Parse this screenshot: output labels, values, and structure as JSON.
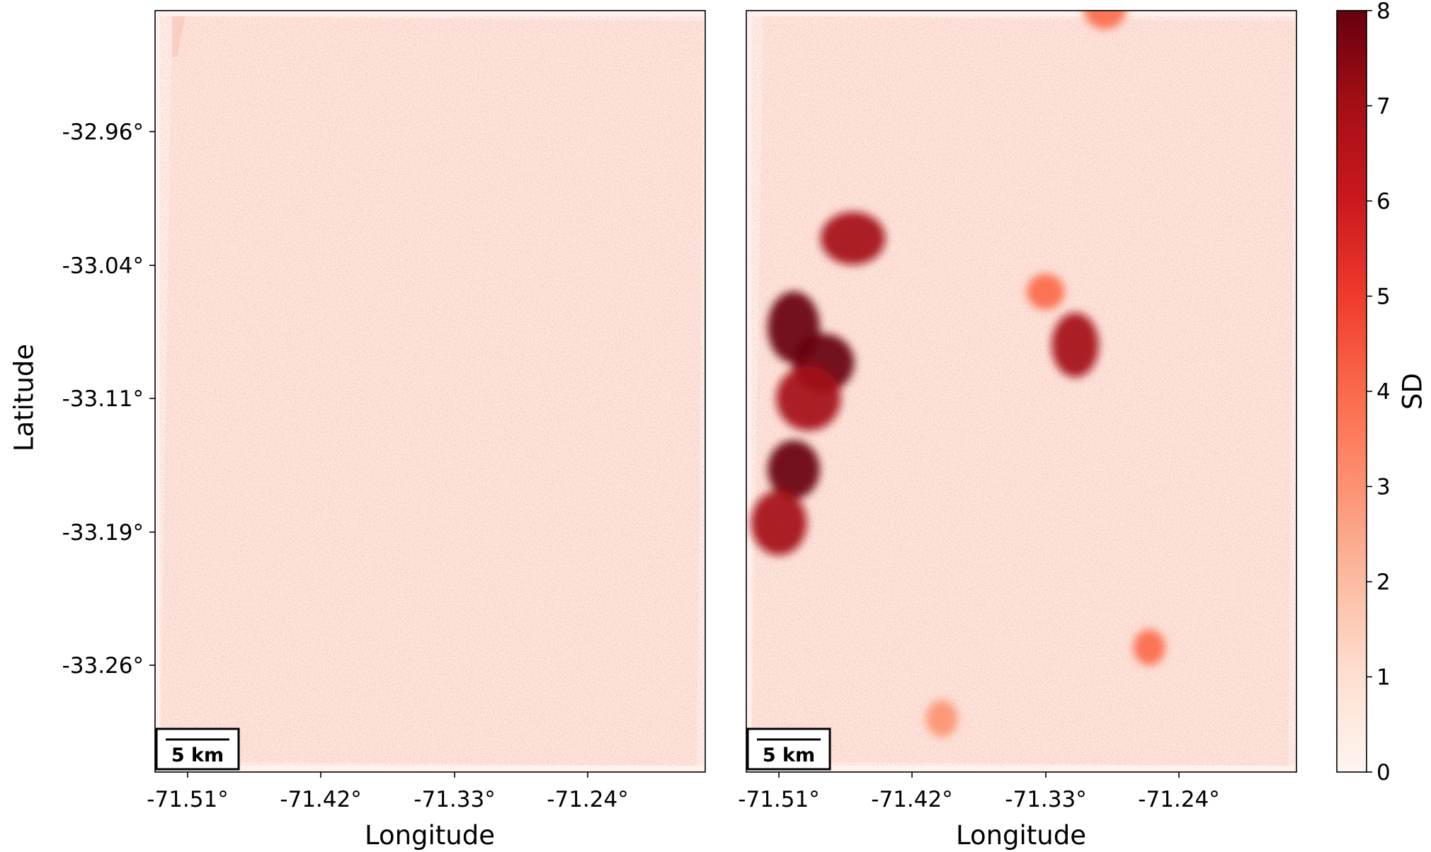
{
  "chart_data": [
    {
      "type": "heatmap",
      "panel": "left",
      "xlabel": "Longitude",
      "ylabel": "Latitude",
      "x_ticks": [
        "-71.51°",
        "-71.42°",
        "-71.33°",
        "-71.24°"
      ],
      "y_ticks": [
        "-32.96°",
        "-33.04°",
        "-33.11°",
        "-33.19°",
        "-33.26°"
      ],
      "scale_bar": "5 km",
      "hotspots": []
    },
    {
      "type": "heatmap",
      "panel": "right",
      "xlabel": "Longitude",
      "ylabel": "",
      "x_ticks": [
        "-71.51°",
        "-71.42°",
        "-71.33°",
        "-71.24°"
      ],
      "y_ticks": [],
      "scale_bar": "5 km",
      "hotspots": [
        {
          "lon": -71.5,
          "lat": -33.07,
          "sd": 8
        },
        {
          "lon": -71.48,
          "lat": -33.09,
          "sd": 8
        },
        {
          "lon": -71.49,
          "lat": -33.11,
          "sd": 7
        },
        {
          "lon": -71.5,
          "lat": -33.15,
          "sd": 8
        },
        {
          "lon": -71.51,
          "lat": -33.18,
          "sd": 7
        },
        {
          "lon": -71.46,
          "lat": -33.02,
          "sd": 7
        },
        {
          "lon": -71.31,
          "lat": -33.08,
          "sd": 7
        },
        {
          "lon": -71.33,
          "lat": -33.05,
          "sd": 4
        },
        {
          "lon": -71.29,
          "lat": -32.89,
          "sd": 4
        },
        {
          "lon": -71.26,
          "lat": -33.25,
          "sd": 4
        },
        {
          "lon": -71.4,
          "lat": -33.29,
          "sd": 3
        }
      ]
    }
  ],
  "colorbar": {
    "label": "SD",
    "min": 0,
    "max": 8,
    "ticks": [
      "0",
      "1",
      "2",
      "3",
      "4",
      "5",
      "6",
      "7",
      "8"
    ],
    "colors": [
      "#fff5f0",
      "#fee0d2",
      "#fcbba1",
      "#fc9272",
      "#fb6a4a",
      "#ef3b2c",
      "#cb181d",
      "#a50f15",
      "#67000d"
    ]
  }
}
